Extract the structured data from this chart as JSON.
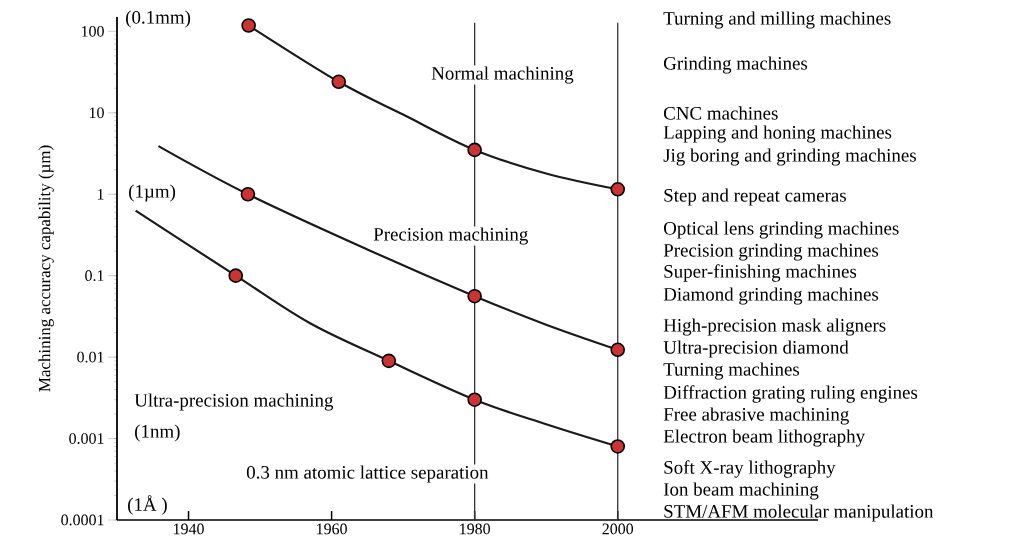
{
  "chart_data": {
    "type": "line",
    "ylabel": "Machining accuracy capability (µm)",
    "log": "y",
    "xlim": [
      1930,
      2028
    ],
    "ylim": [
      0.0001,
      150
    ],
    "xticks": [
      1940,
      1960,
      1980,
      2000
    ],
    "yticks": [
      {
        "value": 0.0001,
        "label": "0.0001"
      },
      {
        "value": 0.001,
        "label": "0.001"
      },
      {
        "value": 0.01,
        "label": "0.01"
      },
      {
        "value": 0.1,
        "label": "0.1"
      },
      {
        "value": 1,
        "label": "1"
      },
      {
        "value": 10,
        "label": "10"
      },
      {
        "value": 100,
        "label": "100"
      }
    ],
    "grid": false,
    "series": [
      {
        "color": "#1a1a1a",
        "line_style": "solid",
        "x": [
          1948.4,
          1961,
          1970,
          1980,
          1990,
          2000
        ],
        "values": [
          118,
          24,
          9.5,
          3.5,
          1.8,
          1.15
        ]
      },
      {
        "color": "#1a1a1a",
        "line_style": "solid",
        "x": [
          1935.8,
          1948.3,
          1965,
          1980,
          1990,
          2000
        ],
        "values": [
          3.9,
          1,
          0.21,
          0.056,
          0.025,
          0.0123
        ]
      },
      {
        "color": "#1a1a1a",
        "line_style": "solid",
        "x": [
          1932.6,
          1946.6,
          1957,
          1968,
          1980,
          1990,
          2000
        ],
        "values": [
          0.63,
          0.1,
          0.026,
          0.009,
          0.003,
          0.0015,
          0.0008
        ]
      },
      {
        "type": "scatter",
        "color": "#cc3333",
        "marker": "circle",
        "x": [
          1948.4,
          1961,
          1980,
          2000,
          1948.3,
          1980,
          2000,
          1946.6,
          1968,
          1980,
          2000
        ],
        "values": [
          118,
          24,
          3.5,
          1.15,
          1,
          0.056,
          0.0123,
          0.1,
          0.009,
          0.003,
          0.0008
        ]
      }
    ],
    "ref_lines": [
      {
        "axis": "x",
        "value": 1980,
        "color": "#333333"
      },
      {
        "axis": "x",
        "value": 2000,
        "color": "#333333"
      }
    ],
    "annotations": [
      "(0.1mm)",
      "(1µm)",
      "(1nm)",
      "(1Å )",
      "Normal machining",
      "Precision machining",
      "Ultra-precision machining",
      "0.3 nm atomic lattice separation",
      "Turning and milling machines",
      "Grinding machines",
      "CNC machines",
      "Lapping and honing machines",
      "Jig boring and grinding machines",
      "Step and repeat cameras",
      "Optical lens grinding machines",
      "Precision grinding machines",
      "Super-finishing machines",
      "Diamond grinding machines",
      "High-precision mask aligners",
      "Ultra-precision diamond",
      "Turning machines",
      "Diffraction grating ruling engines",
      "Free abrasive machining",
      "Electron beam lithography",
      "Soft X-ray lithography",
      "Ion beam machining",
      "STM/AFM molecular manipulation"
    ]
  }
}
